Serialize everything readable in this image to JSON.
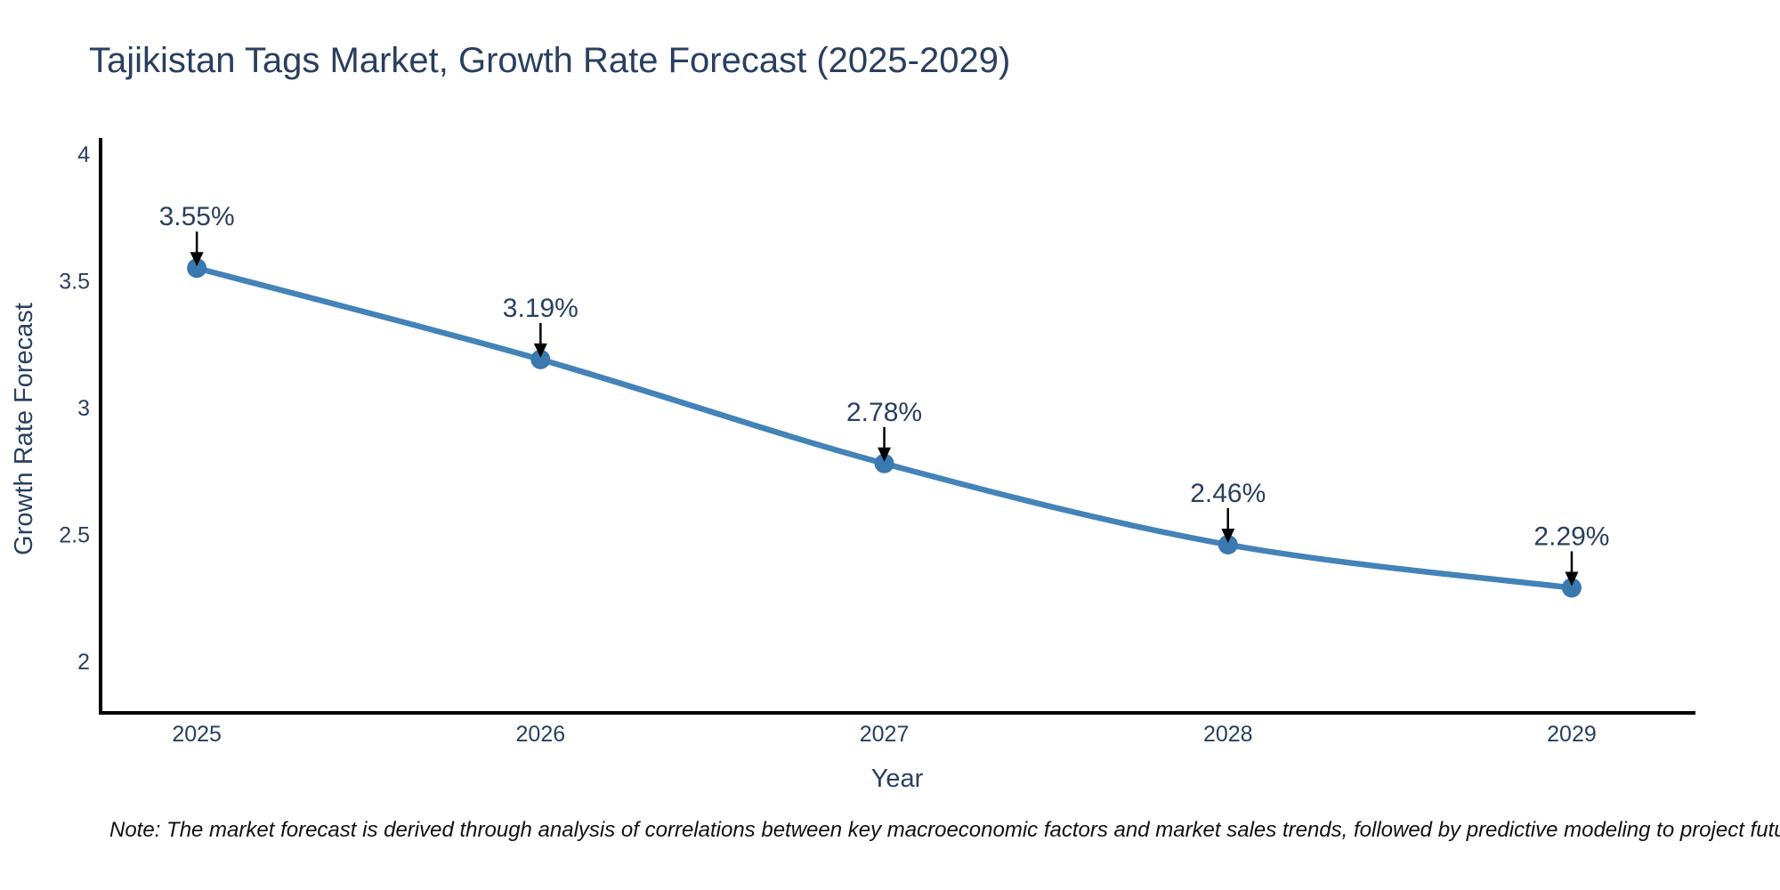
{
  "title": "Tajikistan Tags Market, Growth Rate Forecast (2025-2029)",
  "note": "Note: The market forecast is derived through analysis of correlations between key macroeconomic factors and market sales trends, followed by predictive modeling to project future sales",
  "chart_data": {
    "type": "line",
    "title": "Tajikistan Tags Market, Growth Rate Forecast (2025-2029)",
    "xlabel": "Year",
    "ylabel": "Growth Rate Forecast",
    "x": [
      2025,
      2026,
      2027,
      2028,
      2029
    ],
    "x_tick_labels": [
      "2025",
      "2026",
      "2027",
      "2028",
      "2029"
    ],
    "series": [
      {
        "name": "Growth Rate Forecast",
        "values": [
          3.55,
          3.19,
          2.78,
          2.46,
          2.29
        ]
      }
    ],
    "point_labels": [
      "3.55%",
      "3.19%",
      "2.78%",
      "2.46%",
      "2.29%"
    ],
    "y_ticks": [
      4,
      3.5,
      3,
      2.5,
      2
    ],
    "y_tick_labels": [
      "4",
      "3.5",
      "3",
      "2.5",
      "2"
    ],
    "xlim": [
      2024.72,
      2029.36
    ],
    "ylim": [
      1.797,
      4.063
    ],
    "grid": false,
    "legend": "none",
    "line_style": "spline",
    "colors": {
      "line": "#4383b8",
      "marker": "#3a78b0",
      "text": "#2a3f5f",
      "axis": "#000000",
      "annotation_arrow": "#000000",
      "note_text": "#111111"
    }
  }
}
